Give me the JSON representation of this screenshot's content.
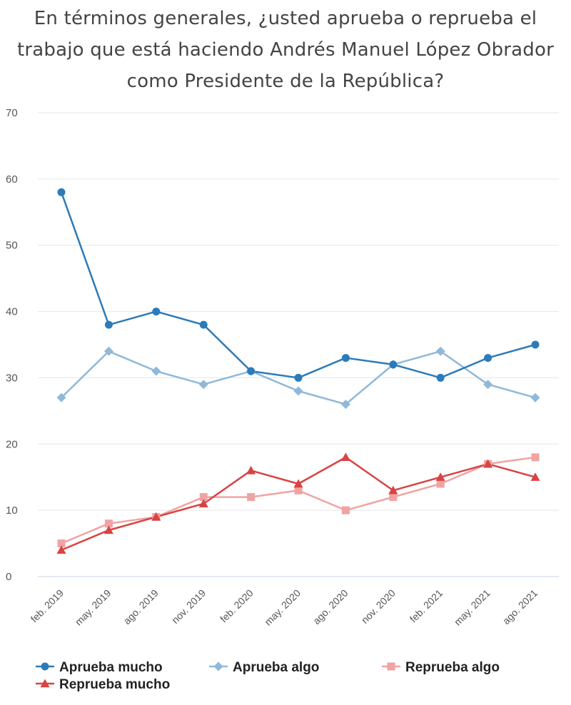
{
  "chart_data": {
    "type": "line",
    "title": "En términos generales, ¿usted aprueba o reprueba el trabajo que está haciendo Andrés Manuel López Obrador como Presidente de la República?",
    "title_lines": [
      "En términos generales, ¿usted aprueba o reprueba el",
      "trabajo que está haciendo Andrés Manuel López Obrador",
      "como Presidente de la República?"
    ],
    "categories": [
      "feb. 2019",
      "may. 2019",
      "ago. 2019",
      "nov. 2019",
      "feb. 2020",
      "may. 2020",
      "ago. 2020",
      "nov. 2020",
      "feb. 2021",
      "may. 2021",
      "ago. 2021"
    ],
    "ylim": [
      0,
      70
    ],
    "yticks": [
      0,
      10,
      20,
      30,
      40,
      50,
      60,
      70
    ],
    "grid": true,
    "legend_position": "bottom",
    "series": [
      {
        "name": "Aprueba mucho",
        "color": "#2b7bba",
        "marker": "circle",
        "values": [
          58,
          38,
          40,
          38,
          31,
          30,
          33,
          32,
          30,
          33,
          35
        ]
      },
      {
        "name": "Aprueba algo",
        "color": "#8fb8d9",
        "marker": "diamond",
        "values": [
          27,
          34,
          31,
          29,
          31,
          28,
          26,
          32,
          34,
          29,
          27
        ]
      },
      {
        "name": "Reprueba algo",
        "color": "#f0a3a3",
        "marker": "square",
        "values": [
          5,
          8,
          9,
          12,
          12,
          13,
          10,
          12,
          14,
          17,
          18
        ]
      },
      {
        "name": "Reprueba mucho",
        "color": "#d94343",
        "marker": "triangle",
        "values": [
          4,
          7,
          9,
          11,
          16,
          14,
          18,
          13,
          15,
          17,
          15
        ]
      }
    ]
  }
}
